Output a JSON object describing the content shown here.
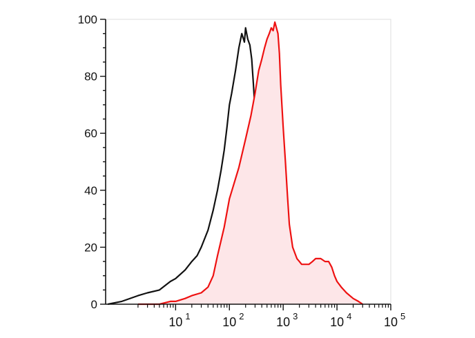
{
  "chart_data": {
    "type": "line",
    "title": "",
    "xlabel": "",
    "ylabel": "",
    "x_scale": "log",
    "xlim": [
      0.5,
      100000
    ],
    "ylim": [
      0,
      100
    ],
    "grid": false,
    "x_ticks": [
      {
        "base": "10",
        "exp": "1",
        "value": 10
      },
      {
        "base": "10",
        "exp": "2",
        "value": 100
      },
      {
        "base": "10",
        "exp": "3",
        "value": 1000
      },
      {
        "base": "10",
        "exp": "4",
        "value": 10000
      },
      {
        "base": "10",
        "exp": "5",
        "value": 100000
      }
    ],
    "y_ticks": [
      {
        "label": "0",
        "value": 0
      },
      {
        "label": "20",
        "value": 20
      },
      {
        "label": "40",
        "value": 40
      },
      {
        "label": "60",
        "value": 60
      },
      {
        "label": "80",
        "value": 80
      },
      {
        "label": "100",
        "value": 100
      }
    ],
    "series": [
      {
        "color": "#111111",
        "fill": false,
        "x": [
          0.55,
          1,
          2,
          3,
          5,
          8,
          10,
          15,
          20,
          25,
          30,
          40,
          50,
          60,
          70,
          80,
          90,
          100,
          110,
          130,
          150,
          170,
          190,
          200,
          220,
          240,
          260,
          280,
          300,
          320,
          350,
          380,
          400,
          450,
          500,
          550,
          650
        ],
        "y": [
          0,
          1,
          3,
          4,
          5,
          8,
          9,
          12,
          15,
          17,
          20,
          26,
          33,
          40,
          47,
          54,
          62,
          70,
          74,
          82,
          90,
          95,
          92,
          97,
          93,
          91,
          86,
          77,
          68,
          55,
          42,
          30,
          20,
          12,
          6,
          2,
          0
        ]
      },
      {
        "color": "#ee1111",
        "fill": true,
        "fill_color": "#fde6e8",
        "x": [
          2,
          5,
          8,
          10,
          15,
          20,
          30,
          40,
          50,
          60,
          80,
          100,
          150,
          200,
          250,
          300,
          350,
          400,
          450,
          500,
          550,
          600,
          650,
          700,
          750,
          800,
          850,
          900,
          1000,
          1100,
          1200,
          1300,
          1500,
          1800,
          2000,
          2200,
          2500,
          3000,
          3500,
          4000,
          5000,
          6000,
          7000,
          8000,
          9000,
          10000,
          12000,
          15000,
          20000,
          25000,
          30000
        ],
        "y": [
          0,
          0,
          1,
          1,
          2,
          3,
          4,
          6,
          10,
          17,
          27,
          37,
          48,
          58,
          66,
          74,
          82,
          86,
          90,
          93,
          95,
          97,
          96,
          99,
          97,
          95,
          88,
          77,
          62,
          50,
          38,
          28,
          20,
          16,
          15,
          14,
          14,
          14,
          15,
          16,
          16,
          15,
          15,
          13,
          10,
          8,
          6,
          4,
          2,
          1,
          0
        ]
      }
    ]
  }
}
